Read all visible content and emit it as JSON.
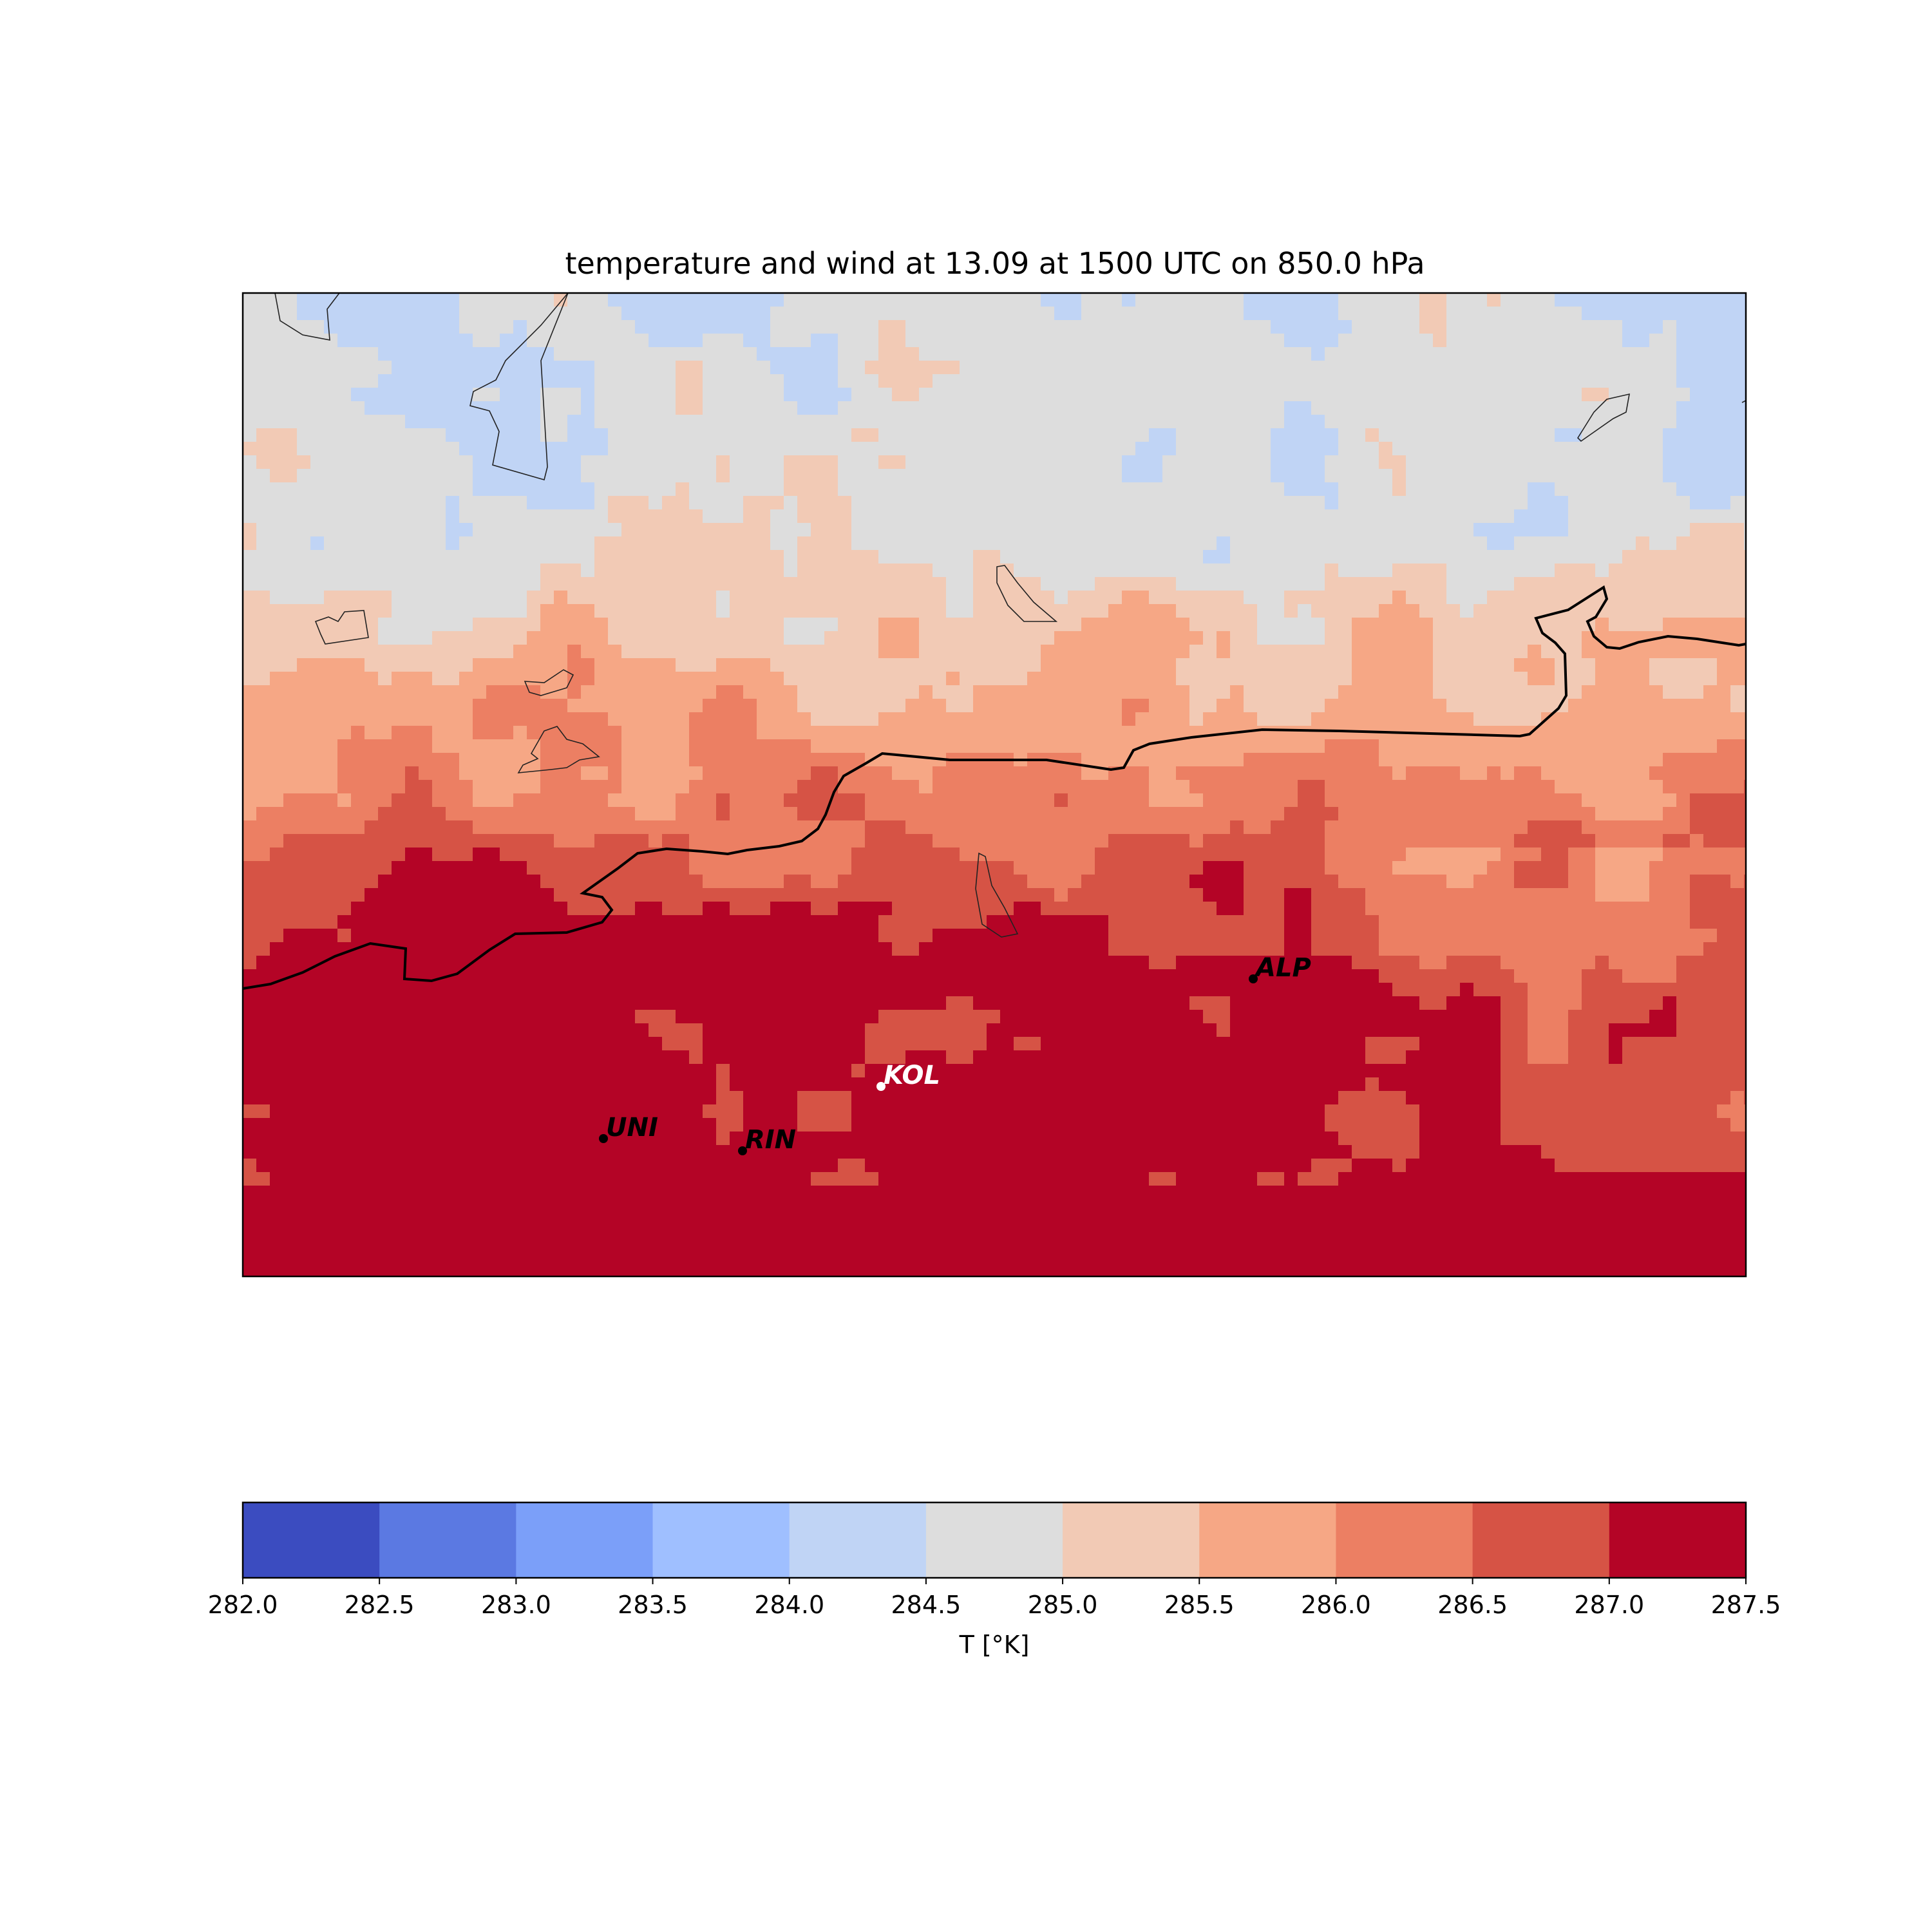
{
  "chart_data": {
    "type": "heatmap",
    "title": "temperature and wind at 13.09 at 1500 UTC on 850.0 hPa",
    "colorbar": {
      "label": "T [°K]",
      "ticks": [
        "282.0",
        "282.5",
        "283.0",
        "283.5",
        "284.0",
        "284.5",
        "285.0",
        "285.5",
        "286.0",
        "286.5",
        "287.0",
        "287.5"
      ],
      "levels": [
        282.0,
        282.5,
        283.0,
        283.5,
        284.0,
        284.5,
        285.0,
        285.5,
        286.0,
        286.5,
        287.0,
        287.5
      ],
      "colors": [
        "#3b4cc0",
        "#5b79e2",
        "#7b9ff9",
        "#9fbfff",
        "#c0d4f5",
        "#dddddd",
        "#f2cab5",
        "#f6a785",
        "#ec7f63",
        "#d65345",
        "#b40426"
      ]
    },
    "stations": [
      {
        "name": "UNI",
        "color": "#000000"
      },
      {
        "name": "RIN",
        "color": "#000000"
      },
      {
        "name": "KOL",
        "color": "#ffffff"
      },
      {
        "name": "ALP",
        "color": "#000000"
      }
    ],
    "field_description_bands": [
      {
        "band": "north",
        "value_range": [
          284.0,
          285.0
        ]
      },
      {
        "band": "upper-middle",
        "value_range": [
          285.0,
          286.0
        ]
      },
      {
        "band": "lower-middle",
        "value_range": [
          286.0,
          287.0
        ]
      },
      {
        "band": "south",
        "value_range": [
          287.0,
          287.5
        ]
      }
    ]
  }
}
